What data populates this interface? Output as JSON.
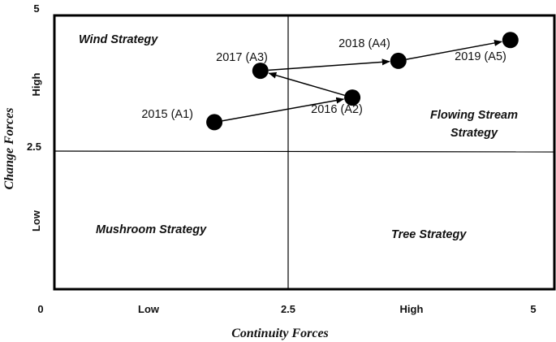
{
  "figure": {
    "x_axis_title": "Continuity Forces",
    "y_axis_title": "Change Forces",
    "x_ticks": {
      "start": "0",
      "low": "Low",
      "mid": "2.5",
      "high": "High",
      "end": "5"
    },
    "y_ticks": {
      "top": "5",
      "high": "High",
      "mid": "2.5",
      "low": "Low"
    },
    "quadrants": {
      "top_left": "Wind Strategy",
      "top_right_line1": "Flowing Stream",
      "top_right_line2": "Strategy",
      "bottom_left": "Mushroom Strategy",
      "bottom_right": "Tree Strategy"
    },
    "points": [
      {
        "label": "2015 (A1)",
        "x": 1.6,
        "y": 3.05
      },
      {
        "label": "2016 (A2)",
        "x": 2.98,
        "y": 3.5
      },
      {
        "label": "2017 (A3)",
        "x": 2.06,
        "y": 3.99
      },
      {
        "label": "2018 (A4)",
        "x": 3.44,
        "y": 4.17
      },
      {
        "label": "2019 (A5)",
        "x": 4.56,
        "y": 4.55
      }
    ],
    "scale": {
      "x_range": [
        0,
        5
      ],
      "y_range": [
        0,
        5
      ],
      "divider": 2.5
    }
  }
}
